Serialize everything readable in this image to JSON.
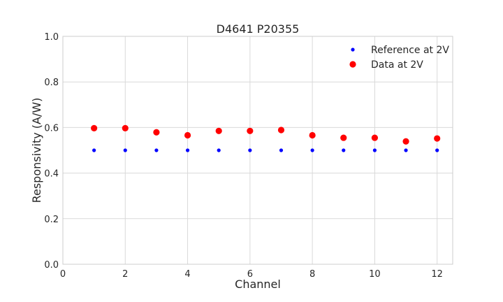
{
  "chart_data": {
    "type": "scatter",
    "title": "D4641 P20355",
    "xlabel": "Channel",
    "ylabel": "Responsivity (A/W)",
    "xlim": [
      0,
      12.5
    ],
    "ylim": [
      0.0,
      1.0
    ],
    "xticks": [
      "0",
      "2",
      "4",
      "6",
      "8",
      "10",
      "12"
    ],
    "yticks": [
      "0.0",
      "0.2",
      "0.4",
      "0.6",
      "0.8",
      "1.0"
    ],
    "grid": true,
    "legend_position": "top-right",
    "series": [
      {
        "name": "Reference at 2V",
        "color": "#0000ff",
        "marker": "small-dot",
        "x": [
          1,
          2,
          3,
          4,
          5,
          6,
          7,
          8,
          9,
          10,
          11,
          12
        ],
        "y": [
          0.5,
          0.5,
          0.5,
          0.5,
          0.5,
          0.5,
          0.5,
          0.5,
          0.5,
          0.5,
          0.5,
          0.5
        ]
      },
      {
        "name": "Data at 2V",
        "color": "#ff0000",
        "marker": "large-dot",
        "x": [
          1,
          2,
          3,
          4,
          5,
          6,
          7,
          8,
          9,
          10,
          11,
          12
        ],
        "y": [
          0.597,
          0.597,
          0.579,
          0.566,
          0.585,
          0.585,
          0.589,
          0.566,
          0.555,
          0.555,
          0.539,
          0.552
        ]
      }
    ]
  }
}
